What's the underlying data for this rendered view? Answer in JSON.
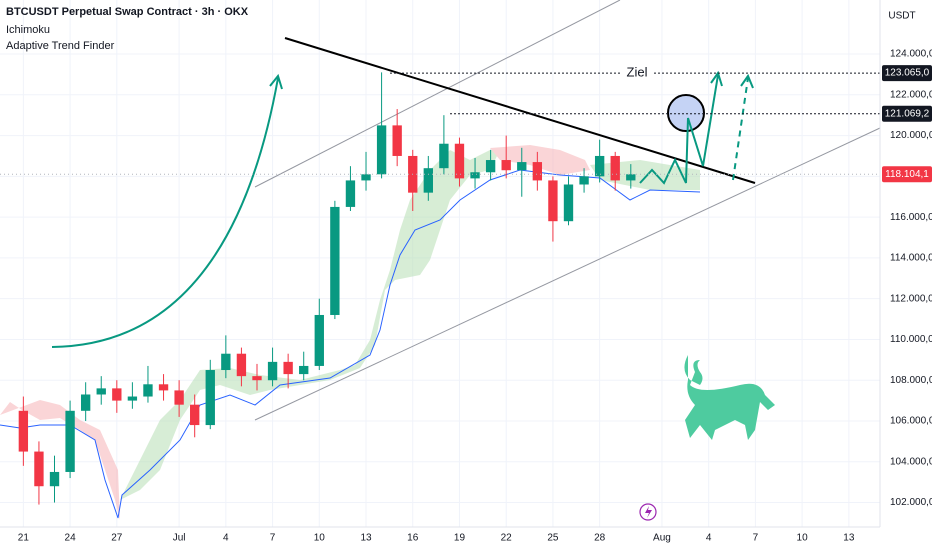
{
  "header": {
    "title": "BTCUSDT Perpetual Swap Contract · 3h · OKX",
    "indicators": [
      "Ichimoku",
      "Adaptive Trend Finder"
    ]
  },
  "chart_data": {
    "type": "candlestick",
    "currency": "USDT",
    "annotation": "Ziel",
    "x": [
      0,
      1,
      2,
      3,
      4,
      5,
      6,
      7,
      8,
      9,
      10,
      11,
      12,
      13,
      14,
      15,
      16,
      17,
      18,
      19,
      20,
      21,
      22,
      23,
      24,
      25,
      26,
      27,
      28,
      29,
      30,
      31,
      32,
      33,
      34,
      35,
      36,
      37,
      38,
      39
    ],
    "open": [
      106500,
      104500,
      102800,
      103500,
      106500,
      107300,
      107600,
      107000,
      107200,
      107800,
      107500,
      106800,
      105800,
      108500,
      109300,
      108200,
      108000,
      108900,
      108300,
      108700,
      111200,
      116500,
      117800,
      118100,
      120500,
      119000,
      117200,
      118400,
      119600,
      117900,
      118200,
      118800,
      118300,
      118700,
      117800,
      115800,
      117600,
      118000,
      119000,
      117800
    ],
    "high": [
      107200,
      105000,
      104300,
      107000,
      107900,
      108200,
      108000,
      107900,
      108700,
      108300,
      108000,
      107300,
      109000,
      110200,
      109600,
      108800,
      109600,
      109300,
      109400,
      112000,
      116800,
      118500,
      119200,
      123100,
      121300,
      119300,
      119000,
      121000,
      119900,
      118900,
      119300,
      120000,
      119400,
      119200,
      118000,
      118000,
      118400,
      119800,
      119200,
      118600
    ],
    "low": [
      103800,
      101900,
      102000,
      103200,
      106000,
      106800,
      106400,
      106600,
      106900,
      107000,
      106200,
      105200,
      105600,
      108100,
      107700,
      107500,
      107700,
      107600,
      108000,
      108500,
      111000,
      116300,
      117300,
      117900,
      118500,
      116300,
      116800,
      118100,
      117500,
      117400,
      117800,
      117900,
      117000,
      117300,
      114800,
      115600,
      117200,
      117700,
      117300,
      117400
    ],
    "close": [
      104500,
      102800,
      103500,
      106500,
      107300,
      107600,
      107000,
      107200,
      107800,
      107500,
      106800,
      105800,
      108500,
      109300,
      108200,
      108000,
      108900,
      108300,
      108700,
      111200,
      116500,
      117800,
      118100,
      120500,
      119000,
      117200,
      118400,
      119600,
      117900,
      118200,
      118800,
      118300,
      118700,
      117800,
      115800,
      117600,
      118000,
      119000,
      117800,
      118100
    ],
    "up_color": "#089981",
    "down_color": "#f23645",
    "xlim": [
      -1.5,
      55
    ],
    "ylim": [
      100800,
      126650
    ],
    "xticks": [
      {
        "value": 0,
        "label": "21"
      },
      {
        "value": 3,
        "label": "24"
      },
      {
        "value": 6,
        "label": "27"
      },
      {
        "value": 10,
        "label": "Jul"
      },
      {
        "value": 13,
        "label": "4"
      },
      {
        "value": 16,
        "label": "7"
      },
      {
        "value": 19,
        "label": "10"
      },
      {
        "value": 22,
        "label": "13"
      },
      {
        "value": 25,
        "label": "16"
      },
      {
        "value": 28,
        "label": "19"
      },
      {
        "value": 31,
        "label": "22"
      },
      {
        "value": 34,
        "label": "25"
      },
      {
        "value": 37,
        "label": "28"
      },
      {
        "value": 41,
        "label": "Aug"
      },
      {
        "value": 44,
        "label": "4"
      },
      {
        "value": 47,
        "label": "7"
      },
      {
        "value": 50,
        "label": "10"
      },
      {
        "value": 53,
        "label": "13"
      }
    ],
    "yticks": [
      {
        "value": 102000,
        "label": "102.000,0"
      },
      {
        "value": 104000,
        "label": "104.000,0"
      },
      {
        "value": 106000,
        "label": "106.000,0"
      },
      {
        "value": 108000,
        "label": "108.000,0"
      },
      {
        "value": 110000,
        "label": "110.000,0"
      },
      {
        "value": 112000,
        "label": "112.000,0"
      },
      {
        "value": 114000,
        "label": "114.000,0"
      },
      {
        "value": 116000,
        "label": "116.000,0"
      },
      {
        "value": 118000,
        "label": "118.000,0"
      },
      {
        "value": 120000,
        "label": "120.000,0"
      },
      {
        "value": 122000,
        "label": "122.000,0"
      },
      {
        "value": 124000,
        "label": "124.000,0"
      }
    ],
    "price_labels": [
      {
        "value": 123065,
        "label": "123.065,0"
      },
      {
        "value": 121069.2,
        "label": "121.069,2"
      },
      {
        "value": 118104.1,
        "label": "118.104,1"
      }
    ],
    "grid": true
  }
}
